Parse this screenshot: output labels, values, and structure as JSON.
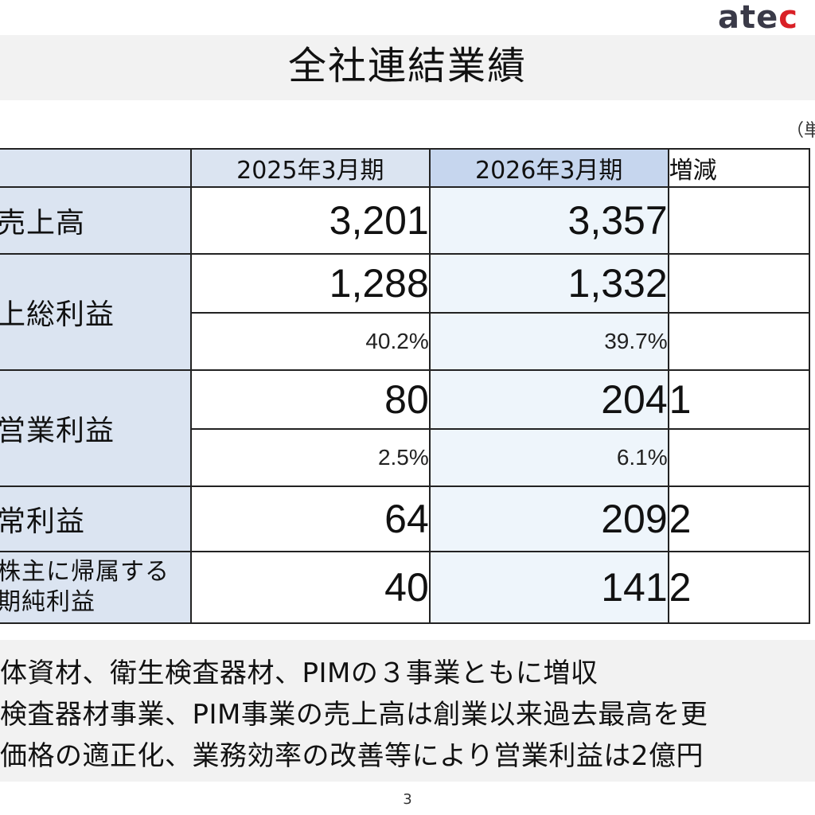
{
  "logo": {
    "text_a": "ate",
    "text_b": "c"
  },
  "title": "全社連結業績",
  "unit_note": "（単",
  "table": {
    "headers": {
      "label": "",
      "prev": "2025年3月期",
      "curr": "2026年3月期",
      "diff": "増減"
    },
    "rows": {
      "sales": {
        "label": "売上高",
        "prev": "3,201",
        "curr": "3,357",
        "diff": ""
      },
      "gross": {
        "label": "上総利益",
        "prev": "1,288",
        "curr": "1,332",
        "diff": "",
        "prev_pct": "40.2%",
        "curr_pct": "39.7%"
      },
      "operating": {
        "label": "営業利益",
        "prev": "80",
        "curr": "204",
        "diff": "1",
        "prev_pct": "2.5%",
        "curr_pct": "6.1%"
      },
      "ordinary": {
        "label": "常利益",
        "prev": "64",
        "curr": "209",
        "diff": "2"
      },
      "net": {
        "label_1": "株主に帰属する",
        "label_2": "期純利益",
        "prev": "40",
        "curr": "141",
        "diff": "2"
      }
    }
  },
  "notes": [
    "体資材、衛生検査器材、PIMの３事業ともに増収",
    "検査器材事業、PIM事業の売上高は創業以来過去最高を更",
    "価格の適正化、業務効率の改善等により営業利益は2億円"
  ],
  "page_number": "3"
}
